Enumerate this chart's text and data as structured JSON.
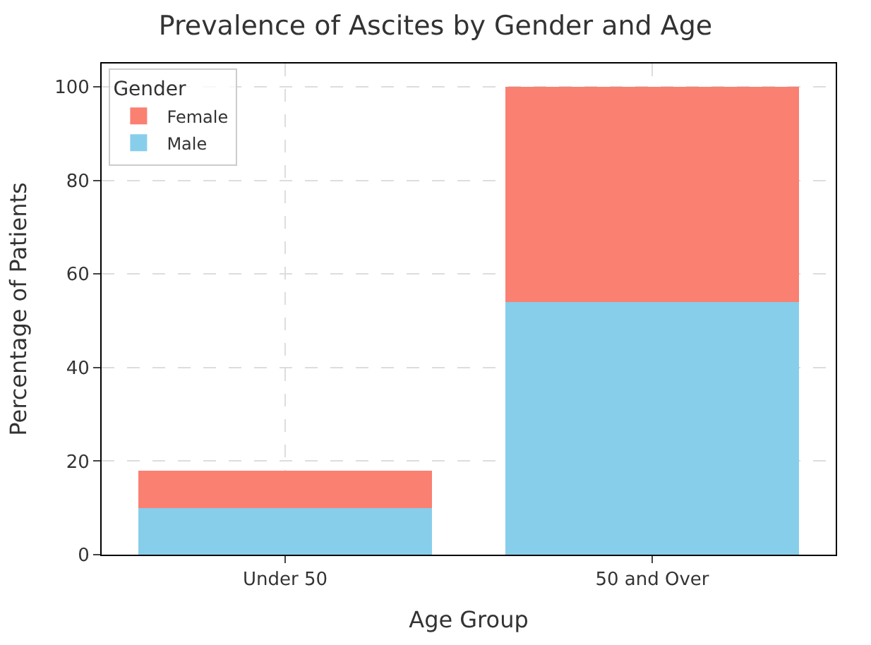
{
  "chart_data": {
    "type": "bar",
    "title": "Prevalence of Ascites by Gender and Age",
    "xlabel": "Age Group",
    "ylabel": "Percentage of Patients",
    "legend_title": "Gender",
    "categories": [
      "Under 50",
      "50 and Over"
    ],
    "series": [
      {
        "name": "Male",
        "color": "#87ceeb",
        "values": [
          10,
          54
        ]
      },
      {
        "name": "Female",
        "color": "#fa8072",
        "values": [
          8,
          46
        ]
      }
    ],
    "stacked": true,
    "ylim": [
      0,
      105
    ],
    "yticks": [
      0,
      20,
      40,
      60,
      80,
      100
    ],
    "grid": true,
    "legend": "top left"
  }
}
